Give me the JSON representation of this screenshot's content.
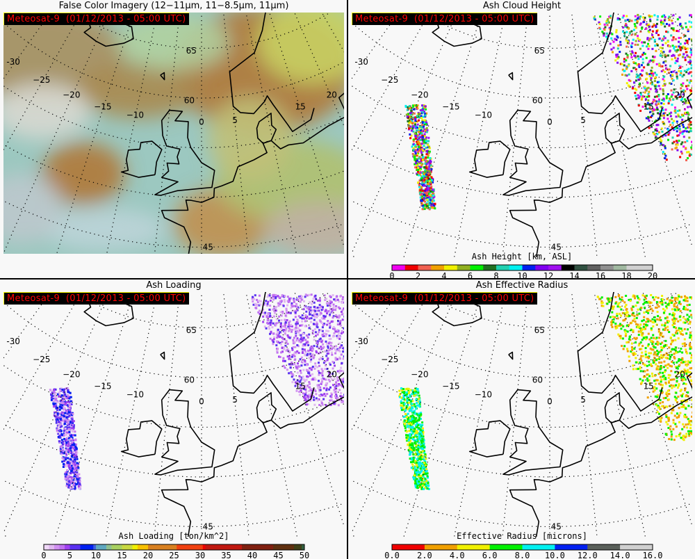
{
  "stamp": "Meteosat-9  (01/12/2013 - 05:00 UTC)",
  "grid_labels": {
    "lon": [
      {
        "value": -30,
        "text": "-30"
      },
      {
        "value": -25,
        "text": "−25"
      },
      {
        "value": -20,
        "text": "−20"
      },
      {
        "value": -15,
        "text": "−15"
      },
      {
        "value": -10,
        "text": "−10"
      },
      {
        "value": 0,
        "text": "0"
      },
      {
        "value": 5,
        "text": "5"
      },
      {
        "value": 15,
        "text": "15"
      },
      {
        "value": 20,
        "text": "20"
      }
    ],
    "lat": [
      {
        "value": 65,
        "text": "65"
      },
      {
        "value": 60,
        "text": "60"
      },
      {
        "value": 45,
        "text": "45"
      }
    ]
  },
  "panels": [
    {
      "id": "false-color",
      "title": "False Color Imagery (12−11μm, 11−8.5μm, 11μm)",
      "type": "rgb"
    },
    {
      "id": "ash-height",
      "title": "Ash Cloud Height",
      "type": "product",
      "colorbar": {
        "label": "Ash Height [km, ASL]",
        "min": 0,
        "max": 20,
        "ticks": [
          "0",
          "2",
          "4",
          "6",
          "8",
          "10",
          "12",
          "14",
          "16",
          "18",
          "20"
        ],
        "colors": [
          "#f000f0",
          "#f00000",
          "#f06050",
          "#f0a000",
          "#f0f000",
          "#90b020",
          "#00f000",
          "#207020",
          "#20d0b0",
          "#00f0f0",
          "#0020f0",
          "#8000f0",
          "#a010f0",
          "#000000",
          "#305040",
          "#606060",
          "#909090",
          "#a0b8a0",
          "#d0d0d0",
          "#d0d0d0"
        ]
      }
    },
    {
      "id": "ash-loading",
      "title": "Ash Loading",
      "type": "product",
      "colorbar": {
        "label": "Ash Loading [ton/km^2]",
        "min": 0,
        "max": 50,
        "ticks": [
          "0",
          "5",
          "10",
          "15",
          "20",
          "25",
          "30",
          "35",
          "40",
          "45",
          "50"
        ],
        "stops": [
          [
            0,
            "#f0d8f8"
          ],
          [
            1,
            "#e0b8f0"
          ],
          [
            2,
            "#d090f0"
          ],
          [
            3,
            "#c070f0"
          ],
          [
            4,
            "#a040f0"
          ],
          [
            5,
            "#5a30f0"
          ],
          [
            7,
            "#0020f0"
          ],
          [
            9.5,
            "#4060e0"
          ],
          [
            10,
            "#60a8c0"
          ],
          [
            12,
            "#90c090"
          ],
          [
            13,
            "#a8d060"
          ],
          [
            15,
            "#c8d840"
          ],
          [
            17,
            "#f0f000"
          ],
          [
            18,
            "#f8c000"
          ],
          [
            20,
            "#d88020"
          ],
          [
            25.5,
            "#f04010"
          ],
          [
            30.5,
            "#f00000"
          ],
          [
            31,
            "#c01810"
          ],
          [
            38,
            "#802010"
          ],
          [
            44,
            "#603010"
          ],
          [
            48,
            "#404018"
          ],
          [
            49.5,
            "#306040"
          ]
        ]
      }
    },
    {
      "id": "ash-radius",
      "title": "Ash Effective Radius",
      "type": "product",
      "colorbar": {
        "label": "Effective Radius [microns]",
        "min": 0,
        "max": 16,
        "ticks": [
          "0.0",
          "2.0",
          "4.0",
          "6.0",
          "8.0",
          "10.0",
          "12.0",
          "14.0",
          "16.0"
        ],
        "colors": [
          "#f00000",
          "#f00000",
          "#f0a000",
          "#f0a000",
          "#f0f000",
          "#f0f000",
          "#00f000",
          "#00f000",
          "#00f0f0",
          "#00f0f0",
          "#0020f0",
          "#0020f0",
          "#5a605a",
          "#5a605a",
          "#d0d0d0",
          "#d0d0d0"
        ]
      }
    }
  ]
}
